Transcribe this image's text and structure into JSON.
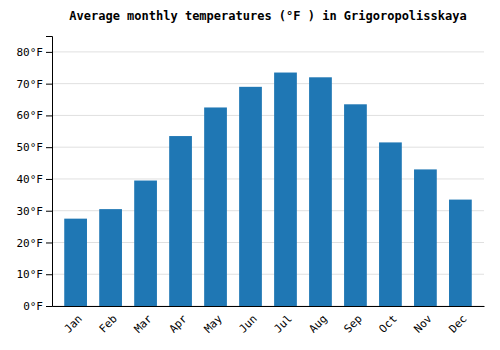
{
  "chart_data": {
    "type": "bar",
    "title": "Average monthly temperatures (°F ) in Grigoropolisskaya",
    "categories": [
      "Jan",
      "Feb",
      "Mar",
      "Apr",
      "May",
      "Jun",
      "Jul",
      "Aug",
      "Sep",
      "Oct",
      "Nov",
      "Dec"
    ],
    "values": [
      27.5,
      30.5,
      39.5,
      53.5,
      62.5,
      69.0,
      73.5,
      72.0,
      63.5,
      51.5,
      43.0,
      33.5
    ],
    "ylim": [
      0,
      85
    ],
    "yticks": [
      {
        "value": 0,
        "label": "0°F"
      },
      {
        "value": 10,
        "label": "10°F"
      },
      {
        "value": 20,
        "label": "20°F"
      },
      {
        "value": 30,
        "label": "30°F"
      },
      {
        "value": 40,
        "label": "40°F"
      },
      {
        "value": 50,
        "label": "50°F"
      },
      {
        "value": 60,
        "label": "60°F"
      },
      {
        "value": 70,
        "label": "70°F"
      },
      {
        "value": 80,
        "label": "80°F"
      }
    ],
    "grid": true
  }
}
